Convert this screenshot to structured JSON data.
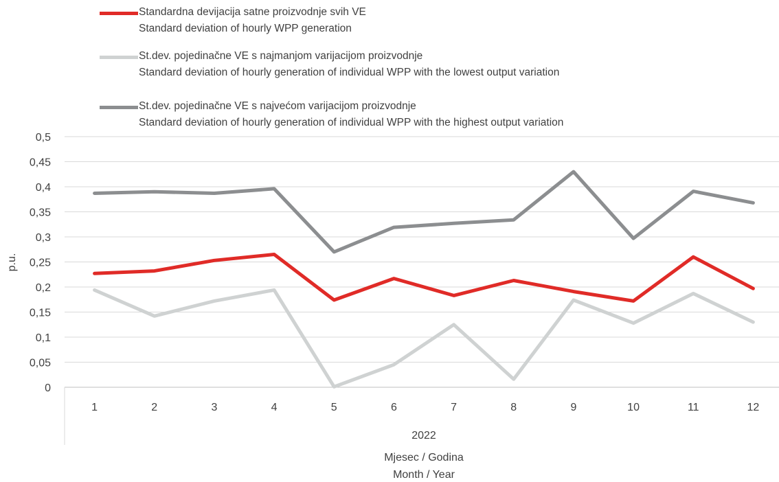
{
  "chart_data": {
    "type": "line",
    "categories": [
      "1",
      "2",
      "3",
      "4",
      "5",
      "6",
      "7",
      "8",
      "9",
      "10",
      "11",
      "12"
    ],
    "group_label": "2022",
    "xlabel_line1": "Mjesec / Godina",
    "xlabel_line2": "Month / Year",
    "ylabel": "p.u.",
    "ylim": [
      0,
      0.5
    ],
    "yticks": [
      "0",
      "0,05",
      "0,1",
      "0,15",
      "0,2",
      "0,25",
      "0,3",
      "0,35",
      "0,4",
      "0,45",
      "0,5"
    ],
    "grid": true,
    "legend_position": "top",
    "series": [
      {
        "name_line1": "Standardna devijacija satne proizvodnje svih VE",
        "name_line2": "Standard deviation of hourly WPP generation",
        "color": "#e02b27",
        "values": [
          0.227,
          0.232,
          0.253,
          0.265,
          0.174,
          0.217,
          0.183,
          0.213,
          0.191,
          0.172,
          0.26,
          0.197
        ]
      },
      {
        "name_line1": "St.dev. pojedinačne VE s najmanjom varijacijom proizvodnje",
        "name_line2": "Standard deviation of hourly generation of individual WPP with the lowest output variation",
        "color": "#cfd2d2",
        "values": [
          0.194,
          0.142,
          0.172,
          0.194,
          0.001,
          0.045,
          0.125,
          0.016,
          0.174,
          0.128,
          0.187,
          0.13
        ]
      },
      {
        "name_line1": "St.dev. pojedinačne VE s najvećom varijacijom proizvodnje",
        "name_line2": "Standard deviation of hourly generation of individual WPP with the highest output variation",
        "color": "#8c8e90",
        "values": [
          0.387,
          0.39,
          0.387,
          0.396,
          0.27,
          0.319,
          0.327,
          0.334,
          0.43,
          0.297,
          0.391,
          0.368
        ]
      }
    ]
  }
}
